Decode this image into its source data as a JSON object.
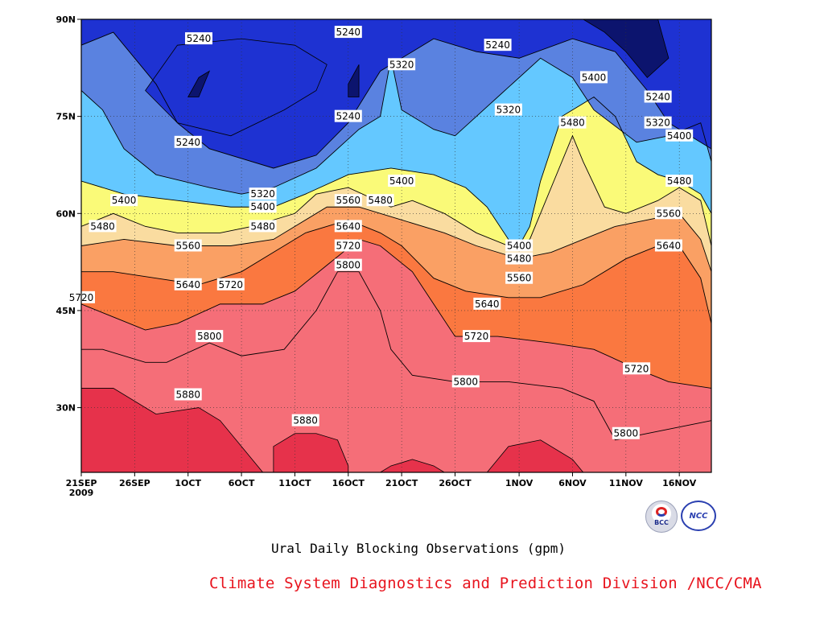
{
  "chart_data": {
    "type": "heatmap",
    "subtype": "filled contour",
    "title": "Ural Daily Blocking Observations (gpm)",
    "x_tick_labels": [
      "21SEP\n2009",
      "26SEP",
      "1OCT",
      "6OCT",
      "11OCT",
      "16OCT",
      "21OCT",
      "26OCT",
      "1NOV",
      "6NOV",
      "11NOV",
      "16NOV"
    ],
    "x_ticks": [
      "2009-09-21",
      "2009-09-26",
      "2009-10-01",
      "2009-10-06",
      "2009-10-11",
      "2009-10-16",
      "2009-10-21",
      "2009-10-26",
      "2009-11-01",
      "2009-11-06",
      "2009-11-11",
      "2009-11-16"
    ],
    "x_range": [
      "2009-09-21",
      "2009-11-19"
    ],
    "y_tick_labels": [
      "90N",
      "75N",
      "60N",
      "45N",
      "30N"
    ],
    "y_ticks": [
      90,
      75,
      60,
      45,
      30
    ],
    "y_range": [
      20,
      90
    ],
    "grid": "dotted",
    "contour_levels": [
      5240,
      5320,
      5400,
      5480,
      5560,
      5640,
      5720,
      5800,
      5880
    ],
    "fill_colors": [
      "#0c146e",
      "#1e32d2",
      "#3c50e6",
      "#5a82e0",
      "#64c8ff",
      "#fafa78",
      "#fadca0",
      "#faa064",
      "#fa7840",
      "#f56e78",
      "#e6324b"
    ],
    "contour_lines": [
      {
        "level": 5240,
        "label": "5240",
        "points": [
          [
            "2009-09-21",
            86
          ],
          [
            "2009-09-24",
            88
          ],
          [
            "2009-09-28",
            80
          ],
          [
            "2009-09-30",
            74
          ],
          [
            "2009-10-03",
            70
          ],
          [
            "2009-10-09",
            67
          ],
          [
            "2009-10-13",
            69
          ],
          [
            "2009-10-16",
            74
          ],
          [
            "2009-10-19",
            82
          ],
          [
            "2009-10-22",
            85
          ],
          [
            "2009-10-24",
            87
          ],
          [
            "2009-10-28",
            85
          ],
          [
            "2009-11-01",
            84
          ],
          [
            "2009-11-06",
            87
          ],
          [
            "2009-11-10",
            85
          ],
          [
            "2009-11-13",
            79
          ],
          [
            "2009-11-15",
            74
          ],
          [
            "2009-11-19",
            70
          ]
        ]
      },
      {
        "level": 5320,
        "label": "5320",
        "points": [
          [
            "2009-09-21",
            79
          ],
          [
            "2009-09-23",
            76
          ],
          [
            "2009-09-25",
            70
          ],
          [
            "2009-09-28",
            66
          ],
          [
            "2009-10-03",
            64
          ],
          [
            "2009-10-06",
            63
          ],
          [
            "2009-10-09",
            64
          ],
          [
            "2009-10-13",
            67
          ],
          [
            "2009-10-17",
            73
          ],
          [
            "2009-10-19",
            75
          ],
          [
            "2009-10-20",
            84
          ],
          [
            "2009-10-21",
            76
          ],
          [
            "2009-10-24",
            73
          ],
          [
            "2009-10-26",
            72
          ],
          [
            "2009-10-30",
            78
          ],
          [
            "2009-11-03",
            84
          ],
          [
            "2009-11-06",
            81
          ],
          [
            "2009-11-08",
            76
          ],
          [
            "2009-11-12",
            71
          ],
          [
            "2009-11-15",
            72
          ],
          [
            "2009-11-18",
            74
          ],
          [
            "2009-11-19",
            68
          ]
        ]
      },
      {
        "level": 5400,
        "label": "5400",
        "points": [
          [
            "2009-09-21",
            65
          ],
          [
            "2009-09-25",
            63
          ],
          [
            "2009-09-30",
            62
          ],
          [
            "2009-10-05",
            61
          ],
          [
            "2009-10-09",
            61
          ],
          [
            "2009-10-12",
            63
          ],
          [
            "2009-10-16",
            66
          ],
          [
            "2009-10-20",
            67
          ],
          [
            "2009-10-24",
            66
          ],
          [
            "2009-10-27",
            64
          ],
          [
            "2009-10-29",
            61
          ],
          [
            "2009-10-31",
            56
          ],
          [
            "2009-11-01",
            55
          ],
          [
            "2009-11-02",
            58
          ],
          [
            "2009-11-03",
            65
          ],
          [
            "2009-11-05",
            75
          ],
          [
            "2009-11-08",
            78
          ],
          [
            "2009-11-10",
            75
          ],
          [
            "2009-11-12",
            68
          ],
          [
            "2009-11-14",
            66
          ],
          [
            "2009-11-16",
            65
          ],
          [
            "2009-11-18",
            63
          ],
          [
            "2009-11-19",
            60
          ]
        ]
      },
      {
        "level": 5480,
        "label": "5480",
        "points": [
          [
            "2009-09-21",
            58
          ],
          [
            "2009-09-24",
            60
          ],
          [
            "2009-09-27",
            58
          ],
          [
            "2009-09-30",
            57
          ],
          [
            "2009-10-04",
            57
          ],
          [
            "2009-10-07",
            58
          ],
          [
            "2009-10-11",
            60
          ],
          [
            "2009-10-13",
            63
          ],
          [
            "2009-10-16",
            64
          ],
          [
            "2009-10-20",
            61
          ],
          [
            "2009-10-22",
            62
          ],
          [
            "2009-10-25",
            60
          ],
          [
            "2009-10-28",
            57
          ],
          [
            "2009-10-31",
            55
          ],
          [
            "2009-11-02",
            56
          ],
          [
            "2009-11-04",
            64
          ],
          [
            "2009-11-06",
            72
          ],
          [
            "2009-11-07",
            68
          ],
          [
            "2009-11-09",
            61
          ],
          [
            "2009-11-11",
            60
          ],
          [
            "2009-11-14",
            62
          ],
          [
            "2009-11-16",
            64
          ],
          [
            "2009-11-18",
            62
          ],
          [
            "2009-11-19",
            55
          ]
        ]
      },
      {
        "level": 5560,
        "label": "5560",
        "points": [
          [
            "2009-09-21",
            55
          ],
          [
            "2009-09-25",
            56
          ],
          [
            "2009-09-30",
            55
          ],
          [
            "2009-10-05",
            55
          ],
          [
            "2009-10-09",
            56
          ],
          [
            "2009-10-11",
            58
          ],
          [
            "2009-10-14",
            61
          ],
          [
            "2009-10-17",
            61
          ],
          [
            "2009-10-21",
            59
          ],
          [
            "2009-10-25",
            57
          ],
          [
            "2009-10-28",
            55
          ],
          [
            "2009-11-01",
            53
          ],
          [
            "2009-11-04",
            54
          ],
          [
            "2009-11-07",
            56
          ],
          [
            "2009-11-10",
            58
          ],
          [
            "2009-11-13",
            59
          ],
          [
            "2009-11-16",
            60
          ],
          [
            "2009-11-18",
            56
          ],
          [
            "2009-11-19",
            51
          ]
        ]
      },
      {
        "level": 5640,
        "label": "5640",
        "points": [
          [
            "2009-09-21",
            51
          ],
          [
            "2009-09-24",
            51
          ],
          [
            "2009-09-28",
            50
          ],
          [
            "2009-10-02",
            49
          ],
          [
            "2009-10-06",
            51
          ],
          [
            "2009-10-09",
            54
          ],
          [
            "2009-10-12",
            57
          ],
          [
            "2009-10-16",
            59
          ],
          [
            "2009-10-19",
            57
          ],
          [
            "2009-10-21",
            55
          ],
          [
            "2009-10-24",
            50
          ],
          [
            "2009-10-27",
            48
          ],
          [
            "2009-10-31",
            47
          ],
          [
            "2009-11-03",
            47
          ],
          [
            "2009-11-07",
            49
          ],
          [
            "2009-11-11",
            53
          ],
          [
            "2009-11-14",
            55
          ],
          [
            "2009-11-16",
            55
          ],
          [
            "2009-11-18",
            50
          ],
          [
            "2009-11-19",
            43
          ]
        ]
      },
      {
        "level": 5720,
        "label": "5720",
        "points": [
          [
            "2009-09-21",
            46
          ],
          [
            "2009-09-24",
            44
          ],
          [
            "2009-09-27",
            42
          ],
          [
            "2009-09-30",
            43
          ],
          [
            "2009-10-04",
            46
          ],
          [
            "2009-10-08",
            46
          ],
          [
            "2009-10-11",
            48
          ],
          [
            "2009-10-14",
            52
          ],
          [
            "2009-10-17",
            56
          ],
          [
            "2009-10-19",
            55
          ],
          [
            "2009-10-22",
            51
          ],
          [
            "2009-10-24",
            46
          ],
          [
            "2009-10-26",
            41
          ],
          [
            "2009-10-30",
            41
          ],
          [
            "2009-11-04",
            40
          ],
          [
            "2009-11-08",
            39
          ],
          [
            "2009-11-12",
            36
          ],
          [
            "2009-11-15",
            34
          ],
          [
            "2009-11-19",
            33
          ]
        ]
      },
      {
        "level": 5800,
        "label": "5800",
        "points": [
          [
            "2009-09-21",
            39
          ],
          [
            "2009-09-23",
            39
          ],
          [
            "2009-09-27",
            37
          ],
          [
            "2009-09-29",
            37
          ],
          [
            "2009-10-03",
            40
          ],
          [
            "2009-10-06",
            38
          ],
          [
            "2009-10-10",
            39
          ],
          [
            "2009-10-13",
            45
          ],
          [
            "2009-10-15",
            51
          ],
          [
            "2009-10-17",
            51
          ],
          [
            "2009-10-19",
            45
          ],
          [
            "2009-10-20",
            39
          ],
          [
            "2009-10-22",
            35
          ],
          [
            "2009-10-26",
            34
          ],
          [
            "2009-10-31",
            34
          ],
          [
            "2009-11-05",
            33
          ],
          [
            "2009-11-08",
            31
          ],
          [
            "2009-11-10",
            25
          ],
          [
            "2009-11-13",
            26
          ],
          [
            "2009-11-16",
            27
          ],
          [
            "2009-11-19",
            28
          ]
        ]
      }
    ],
    "closed_regions": [
      {
        "level": 5880,
        "label": "5880",
        "note": "southwest high, 21SEP to 7OCT, south of 33N"
      },
      {
        "level": 5880,
        "label": "5880",
        "note": "small high near 11OCT, south of 26N"
      },
      {
        "level": 5880,
        "label": "5880",
        "note": "small high near 21OCT, south of 22N"
      },
      {
        "level": 5880,
        "label": "5880",
        "note": "high near 1NOV, south of 25N"
      }
    ],
    "contour_label_texts": [
      "5240",
      "5240",
      "5240",
      "5240",
      "5240",
      "5240",
      "5320",
      "5320",
      "5320",
      "5320",
      "5400",
      "5400",
      "5400",
      "5400",
      "5400",
      "5400",
      "5480",
      "5480",
      "5480",
      "5480",
      "5480",
      "5480",
      "5560",
      "5560",
      "5560",
      "5560",
      "5640",
      "5640",
      "5640",
      "5640",
      "5720",
      "5720",
      "5720",
      "5720",
      "5720",
      "5800",
      "5800",
      "5800",
      "5800",
      "5880",
      "5880"
    ]
  },
  "footer": {
    "title": "Ural Daily Blocking Observations (gpm)",
    "credit": "Climate System Diagnostics and Prediction Division /NCC/CMA"
  },
  "logos": {
    "left": "BCC",
    "right": "NCC"
  }
}
